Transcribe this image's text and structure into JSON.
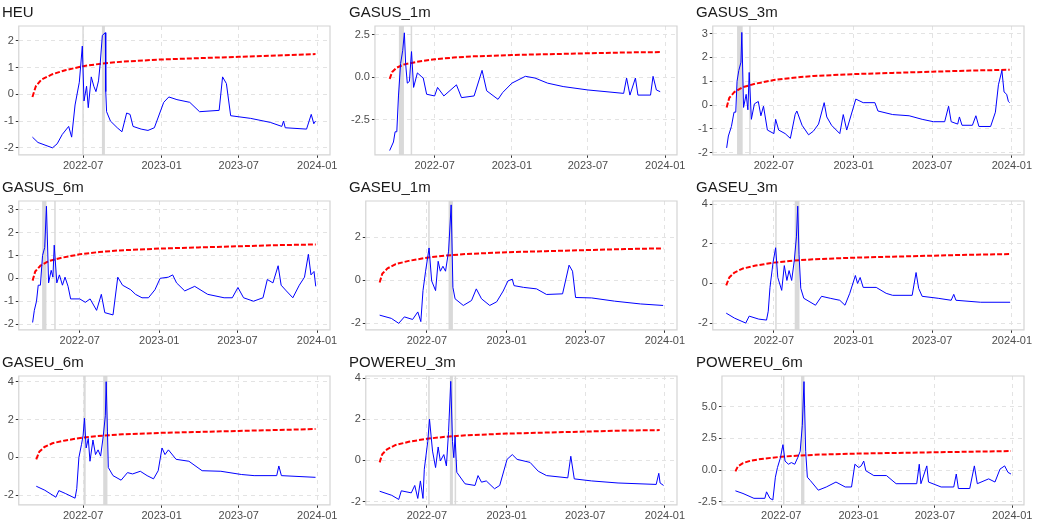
{
  "chart_data": [
    {
      "type": "line",
      "title": "HEU",
      "xlim": [
        "2022-01-31",
        "2024-01-31"
      ],
      "xticks": [
        "2022-07",
        "2023-01",
        "2023-07",
        "2024-01"
      ],
      "ylim": [
        -2.26,
        2.55
      ],
      "yticks": [
        -2,
        -1,
        0,
        1,
        2
      ],
      "grid": true,
      "marker": "none",
      "bands": [
        {
          "axis": "x",
          "from": "2022-06-29",
          "to": "2022-07-01",
          "color": "#d9d9d9"
        },
        {
          "axis": "x",
          "from": "2022-08-14",
          "to": "2022-08-21",
          "color": "#d9d9d9"
        }
      ],
      "series": [
        {
          "color": "#0000ff",
          "line_style": "solid",
          "x": [
            "2022-03-04",
            "2022-03-17",
            "2022-04-20",
            "2022-05-01",
            "2022-05-13",
            "2022-05-28",
            "2022-06-04",
            "2022-06-12",
            "2022-06-22",
            "2022-06-29",
            "2022-07-03",
            "2022-07-09",
            "2022-07-13",
            "2022-07-20",
            "2022-07-26",
            "2022-07-31",
            "2022-08-06",
            "2022-08-10",
            "2022-08-15",
            "2022-08-22",
            "2022-08-23",
            "2022-08-25",
            "2022-09-03",
            "2022-09-19",
            "2022-09-30",
            "2022-10-11",
            "2022-10-19",
            "2022-10-26",
            "2022-11-14",
            "2022-11-30",
            "2022-12-15",
            "2023-01-06",
            "2023-01-18",
            "2023-02-06",
            "2023-03-08",
            "2023-03-31",
            "2023-05-16",
            "2023-05-24",
            "2023-06-02",
            "2023-06-12",
            "2023-07-29",
            "2023-09-13",
            "2023-10-10",
            "2023-10-14",
            "2023-10-18",
            "2023-12-07",
            "2023-12-18",
            "2023-12-24",
            "2023-12-28"
          ],
          "values": [
            -1.6,
            -1.8,
            -2.0,
            -1.85,
            -1.5,
            -1.2,
            -1.6,
            -0.4,
            0.45,
            1.8,
            -0.25,
            0.3,
            -0.5,
            0.65,
            0.3,
            0.1,
            0.5,
            1.15,
            2.2,
            2.3,
            0.1,
            -0.65,
            -1.0,
            -1.25,
            -1.4,
            -0.7,
            -0.75,
            -1.2,
            -1.3,
            -1.35,
            -1.25,
            -0.3,
            -0.1,
            -0.2,
            -0.3,
            -0.65,
            -0.6,
            0.65,
            0.4,
            -0.8,
            -0.9,
            -1.05,
            -1.2,
            -1.0,
            -1.25,
            -1.3,
            -0.75,
            -1.1,
            -1.0
          ]
        },
        {
          "color": "#ff0000",
          "line_style": "dashed",
          "x": [
            "2022-03-04",
            "2022-03-12",
            "2022-03-25",
            "2022-04-20",
            "2022-05-20",
            "2022-07-01",
            "2022-08-15",
            "2022-10-01",
            "2023-01-01",
            "2023-04-01",
            "2023-07-01",
            "2023-10-01",
            "2023-12-28"
          ],
          "values": [
            -0.1,
            0.3,
            0.55,
            0.75,
            0.9,
            1.05,
            1.15,
            1.22,
            1.3,
            1.35,
            1.4,
            1.45,
            1.5
          ]
        }
      ]
    },
    {
      "type": "line",
      "title": "GASUS_1m",
      "xlim": [
        "2022-02-09",
        "2024-01-29"
      ],
      "xticks": [
        "2022-07",
        "2023-01",
        "2023-07",
        "2024-01"
      ],
      "ylim": [
        -4.55,
        3.0
      ],
      "yticks": [
        {
          "value": -2.5,
          "label": "-2.5"
        },
        {
          "value": 0,
          "label": "0.0"
        },
        {
          "value": 2.5,
          "label": "2.5"
        }
      ],
      "grid": true,
      "marker": "none",
      "bands": [
        {
          "axis": "x",
          "from": "2022-04-07",
          "to": "2022-04-19",
          "color": "#d9d9d9"
        },
        {
          "axis": "x",
          "from": "2022-05-05",
          "to": "2022-05-06",
          "color": "#d9d9d9"
        }
      ],
      "series": [
        {
          "color": "#0000ff",
          "line_style": "solid",
          "x": [
            "2022-03-16",
            "2022-03-25",
            "2022-03-29",
            "2022-04-02",
            "2022-04-06",
            "2022-04-11",
            "2022-04-16",
            "2022-04-20",
            "2022-04-23",
            "2022-04-27",
            "2022-05-02",
            "2022-05-07",
            "2022-05-12",
            "2022-05-21",
            "2022-05-30",
            "2022-06-04",
            "2022-06-12",
            "2022-07-01",
            "2022-07-08",
            "2022-07-23",
            "2022-08-22",
            "2022-09-03",
            "2022-10-03",
            "2022-10-22",
            "2022-11-02",
            "2022-11-29",
            "2022-12-10",
            "2023-01-01",
            "2023-02-02",
            "2023-02-25",
            "2023-03-27",
            "2023-05-03",
            "2023-07-01",
            "2023-08-13",
            "2023-09-24",
            "2023-10-01",
            "2023-10-09",
            "2023-10-22",
            "2023-10-28",
            "2023-11-27",
            "2023-12-03",
            "2023-12-11",
            "2023-12-20"
          ],
          "values": [
            -4.3,
            -3.8,
            -3.2,
            -3.2,
            -1.1,
            0.8,
            1.55,
            2.6,
            0.8,
            -0.35,
            -0.25,
            1.5,
            -0.6,
            0.25,
            0.05,
            -0.05,
            -1.0,
            -1.1,
            -0.6,
            -1.1,
            -0.45,
            -1.2,
            -1.1,
            0.4,
            -0.8,
            -1.3,
            -0.9,
            -0.35,
            0.05,
            -0.05,
            -0.35,
            -0.55,
            -0.75,
            -0.85,
            -0.95,
            -0.05,
            -1.05,
            -0.05,
            -1.05,
            -1.05,
            0.05,
            -0.75,
            -0.85
          ]
        },
        {
          "color": "#ff0000",
          "line_style": "dashed",
          "x": [
            "2022-03-16",
            "2022-03-22",
            "2022-04-01",
            "2022-04-20",
            "2022-05-20",
            "2022-07-01",
            "2022-08-15",
            "2022-10-01",
            "2023-01-01",
            "2023-04-01",
            "2023-07-01",
            "2023-10-01",
            "2023-12-20"
          ],
          "values": [
            -0.1,
            0.3,
            0.55,
            0.75,
            0.9,
            1.05,
            1.15,
            1.22,
            1.3,
            1.35,
            1.4,
            1.45,
            1.47
          ]
        }
      ]
    },
    {
      "type": "line",
      "title": "GASUS_3m",
      "xlim": [
        "2022-02-10",
        "2024-01-29"
      ],
      "xticks": [
        "2022-07",
        "2023-01",
        "2023-07",
        "2024-01"
      ],
      "ylim": [
        -2.09,
        3.32
      ],
      "yticks": [
        -2,
        -1,
        0,
        1,
        2,
        3
      ],
      "grid": true,
      "marker": "none",
      "bands": [
        {
          "axis": "x",
          "from": "2022-04-07",
          "to": "2022-04-20",
          "color": "#d9d9d9"
        },
        {
          "axis": "x",
          "from": "2022-05-05",
          "to": "2022-05-06",
          "color": "#d9d9d9"
        }
      ],
      "series": [
        {
          "color": "#0000ff",
          "line_style": "solid",
          "x": [
            "2022-03-14",
            "2022-03-18",
            "2022-03-25",
            "2022-03-31",
            "2022-04-04",
            "2022-04-07",
            "2022-04-11",
            "2022-04-16",
            "2022-04-18",
            "2022-04-22",
            "2022-04-28",
            "2022-05-02",
            "2022-05-05",
            "2022-05-10",
            "2022-05-17",
            "2022-05-26",
            "2022-06-01",
            "2022-06-07",
            "2022-06-16",
            "2022-07-01",
            "2022-07-05",
            "2022-07-12",
            "2022-07-27",
            "2022-08-08",
            "2022-08-19",
            "2022-08-23",
            "2022-09-04",
            "2022-09-19",
            "2022-09-30",
            "2022-10-12",
            "2022-10-25",
            "2022-10-31",
            "2022-11-11",
            "2022-11-30",
            "2022-12-08",
            "2022-12-16",
            "2023-01-06",
            "2023-01-23",
            "2023-02-19",
            "2023-02-26",
            "2023-04-01",
            "2023-05-09",
            "2023-06-08",
            "2023-07-04",
            "2023-07-30",
            "2023-08-08",
            "2023-08-14",
            "2023-08-29",
            "2023-09-02",
            "2023-09-08",
            "2023-10-02",
            "2023-10-10",
            "2023-10-17",
            "2023-11-13",
            "2023-11-24",
            "2023-12-01",
            "2023-12-09",
            "2023-12-14",
            "2023-12-20",
            "2023-12-24",
            "2023-12-27"
          ],
          "values": [
            -1.8,
            -1.3,
            -0.9,
            -0.3,
            -0.3,
            1.0,
            1.45,
            1.8,
            3.05,
            -0.1,
            0.45,
            -0.2,
            1.37,
            -0.6,
            0.05,
            0.15,
            -0.45,
            -0.05,
            -1.05,
            -1.2,
            -0.6,
            -1.05,
            -1.2,
            -1.4,
            -0.4,
            -0.25,
            -0.85,
            -1.25,
            -1.1,
            -0.8,
            0.1,
            -0.5,
            -0.85,
            -1.2,
            -0.4,
            -1.05,
            0.25,
            0.1,
            0.1,
            -0.25,
            -0.4,
            -0.45,
            -0.6,
            -0.7,
            -0.7,
            -0.05,
            -0.7,
            -0.8,
            -0.5,
            -0.85,
            -0.85,
            -0.45,
            -0.9,
            -0.9,
            -0.3,
            0.85,
            1.45,
            0.55,
            0.45,
            0.15,
            0.1
          ]
        },
        {
          "color": "#ff0000",
          "line_style": "dashed",
          "x": [
            "2022-03-14",
            "2022-03-20",
            "2022-04-01",
            "2022-04-20",
            "2022-05-20",
            "2022-07-01",
            "2022-08-15",
            "2022-10-01",
            "2023-01-01",
            "2023-04-01",
            "2023-07-01",
            "2023-10-01",
            "2023-12-27"
          ],
          "values": [
            -0.1,
            0.3,
            0.55,
            0.75,
            0.9,
            1.05,
            1.15,
            1.22,
            1.3,
            1.35,
            1.4,
            1.45,
            1.48
          ]
        }
      ]
    },
    {
      "type": "line",
      "title": "GASUS_6m",
      "xlim": [
        "2022-02-10",
        "2024-01-31"
      ],
      "xticks": [
        "2022-07",
        "2023-01",
        "2023-07",
        "2024-01"
      ],
      "ylim": [
        -2.25,
        3.38
      ],
      "yticks": [
        -2,
        -1,
        0,
        1,
        2,
        3
      ],
      "grid": true,
      "marker": "none",
      "bands": [
        {
          "axis": "x",
          "from": "2022-04-05",
          "to": "2022-04-15",
          "color": "#d9d9d9"
        },
        {
          "axis": "x",
          "from": "2022-05-03",
          "to": "2022-05-04",
          "color": "#d9d9d9"
        }
      ],
      "series": [
        {
          "color": "#0000ff",
          "line_style": "solid",
          "x": [
            "2022-03-14",
            "2022-03-18",
            "2022-03-23",
            "2022-03-27",
            "2022-04-01",
            "2022-04-06",
            "2022-04-11",
            "2022-04-15",
            "2022-04-20",
            "2022-04-26",
            "2022-04-30",
            "2022-05-03",
            "2022-05-09",
            "2022-05-15",
            "2022-05-22",
            "2022-05-28",
            "2022-06-04",
            "2022-06-10",
            "2022-07-01",
            "2022-07-14",
            "2022-07-25",
            "2022-08-09",
            "2022-08-20",
            "2022-08-28",
            "2022-09-16",
            "2022-09-27",
            "2022-10-08",
            "2022-10-27",
            "2022-11-07",
            "2022-11-22",
            "2022-12-07",
            "2022-12-22",
            "2023-01-03",
            "2023-01-22",
            "2023-02-01",
            "2023-02-10",
            "2023-03-01",
            "2023-03-24",
            "2023-04-23",
            "2023-05-31",
            "2023-06-19",
            "2023-07-02",
            "2023-07-15",
            "2023-08-07",
            "2023-08-29",
            "2023-09-08",
            "2023-09-21",
            "2023-10-03",
            "2023-10-10",
            "2023-10-22",
            "2023-11-06",
            "2023-11-21",
            "2023-12-03",
            "2023-12-12",
            "2023-12-18",
            "2023-12-25",
            "2023-12-29"
          ],
          "values": [
            -1.93,
            -1.4,
            -1.0,
            -0.3,
            -0.3,
            1.0,
            1.35,
            3.15,
            -0.2,
            0.35,
            0.05,
            1.45,
            -0.2,
            0.15,
            -0.3,
            0.05,
            -0.35,
            -0.9,
            -0.9,
            -1.05,
            -0.9,
            -1.4,
            -0.7,
            -1.5,
            -1.6,
            0.05,
            -0.3,
            -0.5,
            -0.7,
            -0.85,
            -0.85,
            -0.5,
            0.0,
            0.05,
            0.15,
            -0.2,
            -0.55,
            -0.35,
            -0.7,
            -0.85,
            -0.85,
            -0.4,
            -0.85,
            -1.0,
            -0.85,
            -0.05,
            -0.2,
            0.55,
            -0.3,
            -0.55,
            -0.85,
            -0.3,
            0.05,
            1.05,
            0.15,
            0.3,
            -0.35
          ]
        },
        {
          "color": "#ff0000",
          "line_style": "dashed",
          "x": [
            "2022-03-14",
            "2022-03-20",
            "2022-04-01",
            "2022-04-20",
            "2022-05-20",
            "2022-07-01",
            "2022-08-15",
            "2022-10-01",
            "2023-01-01",
            "2023-04-01",
            "2023-07-01",
            "2023-10-01",
            "2023-12-29"
          ],
          "values": [
            -0.1,
            0.3,
            0.55,
            0.75,
            0.9,
            1.05,
            1.15,
            1.22,
            1.3,
            1.35,
            1.4,
            1.45,
            1.48
          ]
        }
      ]
    },
    {
      "type": "line",
      "title": "GASEU_1m",
      "xlim": [
        "2022-02-10",
        "2024-01-29"
      ],
      "xticks": [
        "2022-07",
        "2023-01",
        "2023-07",
        "2024-01"
      ],
      "ylim": [
        -2.3,
        3.68
      ],
      "yticks": [
        -2,
        0,
        2
      ],
      "grid": true,
      "marker": "none",
      "bands": [
        {
          "axis": "x",
          "from": "2022-07-04",
          "to": "2022-07-05",
          "color": "#d9d9d9"
        },
        {
          "axis": "x",
          "from": "2022-08-20",
          "to": "2022-08-30",
          "color": "#d9d9d9"
        }
      ],
      "series": [
        {
          "color": "#0000ff",
          "line_style": "solid",
          "x": [
            "2022-03-14",
            "2022-04-10",
            "2022-04-27",
            "2022-05-10",
            "2022-05-29",
            "2022-06-10",
            "2022-06-17",
            "2022-06-22",
            "2022-06-28",
            "2022-07-06",
            "2022-07-12",
            "2022-07-21",
            "2022-07-27",
            "2022-08-01",
            "2022-08-07",
            "2022-08-13",
            "2022-08-20",
            "2022-08-26",
            "2022-08-30",
            "2022-09-04",
            "2022-09-23",
            "2022-10-12",
            "2022-10-23",
            "2022-11-04",
            "2022-11-23",
            "2022-12-09",
            "2022-12-24",
            "2023-01-04",
            "2023-01-14",
            "2023-01-18",
            "2023-02-09",
            "2023-03-11",
            "2023-04-03",
            "2023-05-10",
            "2023-05-25",
            "2023-06-02",
            "2023-06-09",
            "2023-07-16",
            "2023-09-07",
            "2023-11-06",
            "2023-12-28"
          ],
          "values": [
            -1.62,
            -1.77,
            -2.0,
            -1.7,
            -1.82,
            -1.47,
            -1.92,
            -0.48,
            0.42,
            1.5,
            -0.03,
            -0.48,
            0.88,
            0.42,
            0.65,
            0.42,
            1.35,
            3.5,
            -0.33,
            -0.86,
            -1.17,
            -0.94,
            -0.4,
            -0.86,
            -1.17,
            -1.0,
            -0.5,
            -0.03,
            0.05,
            -0.25,
            -0.33,
            -0.4,
            -0.66,
            -0.63,
            0.7,
            0.42,
            -0.8,
            -0.82,
            -0.97,
            -1.1,
            -1.17
          ]
        },
        {
          "color": "#ff0000",
          "line_style": "dashed",
          "x": [
            "2022-03-14",
            "2022-03-20",
            "2022-04-01",
            "2022-04-20",
            "2022-05-20",
            "2022-07-01",
            "2022-08-15",
            "2022-10-01",
            "2023-01-01",
            "2023-04-01",
            "2023-07-01",
            "2023-10-01",
            "2023-12-28"
          ],
          "values": [
            -0.1,
            0.3,
            0.55,
            0.75,
            0.9,
            1.05,
            1.15,
            1.22,
            1.3,
            1.35,
            1.4,
            1.45,
            1.48
          ]
        }
      ]
    },
    {
      "type": "line",
      "title": "GASEU_3m",
      "xlim": [
        "2022-02-10",
        "2024-01-29"
      ],
      "xticks": [
        "2022-07",
        "2023-01",
        "2023-07",
        "2024-01"
      ],
      "ylim": [
        -2.34,
        4.16
      ],
      "yticks": [
        -2,
        0,
        2,
        4
      ],
      "grid": true,
      "marker": "none",
      "bands": [
        {
          "axis": "x",
          "from": "2022-07-04",
          "to": "2022-07-06",
          "color": "#d9d9d9"
        },
        {
          "axis": "x",
          "from": "2022-08-18",
          "to": "2022-08-29",
          "color": "#d9d9d9"
        }
      ],
      "series": [
        {
          "color": "#0000ff",
          "line_style": "solid",
          "x": [
            "2022-03-13",
            "2022-04-01",
            "2022-04-27",
            "2022-05-05",
            "2022-05-27",
            "2022-06-14",
            "2022-06-18",
            "2022-06-22",
            "2022-06-29",
            "2022-07-05",
            "2022-07-10",
            "2022-07-19",
            "2022-07-25",
            "2022-07-31",
            "2022-08-05",
            "2022-08-11",
            "2022-08-17",
            "2022-08-22",
            "2022-08-25",
            "2022-08-28",
            "2022-09-01",
            "2022-09-08",
            "2022-10-05",
            "2022-10-19",
            "2022-11-08",
            "2022-11-30",
            "2022-12-12",
            "2022-12-23",
            "2023-01-05",
            "2023-01-10",
            "2023-01-16",
            "2023-01-23",
            "2023-02-22",
            "2023-03-17",
            "2023-04-01",
            "2023-05-16",
            "2023-05-25",
            "2023-05-31",
            "2023-06-08",
            "2023-07-15",
            "2023-08-14",
            "2023-08-20",
            "2023-08-25",
            "2023-10-21",
            "2023-12-28"
          ],
          "values": [
            -1.5,
            -1.75,
            -2.0,
            -1.65,
            -1.8,
            -1.85,
            -1.4,
            -0.2,
            1.05,
            1.8,
            0.3,
            -0.35,
            0.9,
            0.15,
            0.65,
            0.15,
            1.15,
            2.35,
            3.9,
            1.45,
            -0.25,
            -0.75,
            -1.1,
            -0.65,
            -0.75,
            -0.85,
            -1.1,
            -0.5,
            0.4,
            0.0,
            0.3,
            -0.2,
            -0.2,
            -0.5,
            -0.6,
            -0.6,
            0.55,
            -0.25,
            -0.65,
            -0.75,
            -0.85,
            -0.55,
            -0.85,
            -0.95,
            -0.95
          ]
        },
        {
          "color": "#ff0000",
          "line_style": "dashed",
          "x": [
            "2022-03-13",
            "2022-03-20",
            "2022-04-01",
            "2022-04-20",
            "2022-05-20",
            "2022-07-01",
            "2022-08-15",
            "2022-10-01",
            "2023-01-01",
            "2023-04-01",
            "2023-07-01",
            "2023-10-01",
            "2023-12-28"
          ],
          "values": [
            -0.1,
            0.3,
            0.55,
            0.75,
            0.9,
            1.05,
            1.15,
            1.22,
            1.3,
            1.35,
            1.4,
            1.45,
            1.48
          ]
        }
      ]
    },
    {
      "type": "line",
      "title": "GASEU_6m",
      "xlim": [
        "2022-01-31",
        "2024-01-31"
      ],
      "xticks": [
        "2022-07",
        "2023-01",
        "2023-07",
        "2024-01"
      ],
      "ylim": [
        -2.5,
        4.3
      ],
      "yticks": [
        -2,
        0,
        2,
        4
      ],
      "grid": true,
      "marker": "none",
      "bands": [
        {
          "axis": "x",
          "from": "2022-07-02",
          "to": "2022-07-07",
          "color": "#d9d9d9"
        },
        {
          "axis": "x",
          "from": "2022-08-17",
          "to": "2022-08-27",
          "color": "#d9d9d9"
        }
      ],
      "series": [
        {
          "color": "#0000ff",
          "line_style": "solid",
          "x": [
            "2022-03-13",
            "2022-04-02",
            "2022-04-28",
            "2022-05-05",
            "2022-05-20",
            "2022-06-12",
            "2022-06-16",
            "2022-06-21",
            "2022-06-27",
            "2022-07-01",
            "2022-07-04",
            "2022-07-08",
            "2022-07-13",
            "2022-07-17",
            "2022-07-24",
            "2022-07-30",
            "2022-08-05",
            "2022-08-11",
            "2022-08-17",
            "2022-08-22",
            "2022-08-24",
            "2022-08-27",
            "2022-08-29",
            "2022-09-09",
            "2022-09-28",
            "2022-10-13",
            "2022-10-25",
            "2022-11-12",
            "2022-11-28",
            "2022-12-13",
            "2022-12-24",
            "2023-01-02",
            "2023-01-09",
            "2023-01-17",
            "2023-02-04",
            "2023-03-06",
            "2023-04-06",
            "2023-05-20",
            "2023-07-07",
            "2023-08-06",
            "2023-09-28",
            "2023-10-03",
            "2023-10-09",
            "2023-12-28"
          ],
          "values": [
            -1.52,
            -1.73,
            -2.1,
            -1.75,
            -1.9,
            -2.15,
            -1.65,
            0.0,
            0.67,
            1.18,
            2.07,
            0.5,
            1.0,
            -0.2,
            0.92,
            0.15,
            0.4,
            0.07,
            1.1,
            2.2,
            4.0,
            1.35,
            -0.53,
            -0.96,
            -1.2,
            -0.8,
            -0.87,
            -0.73,
            -0.96,
            -1.13,
            -0.7,
            0.5,
            0.15,
            0.4,
            -0.1,
            -0.2,
            -0.7,
            -0.73,
            -0.9,
            -0.96,
            -0.96,
            -0.45,
            -0.96,
            -1.05
          ]
        },
        {
          "color": "#ff0000",
          "line_style": "dashed",
          "x": [
            "2022-03-13",
            "2022-03-20",
            "2022-04-01",
            "2022-04-20",
            "2022-05-20",
            "2022-07-01",
            "2022-08-15",
            "2022-10-01",
            "2023-01-01",
            "2023-04-01",
            "2023-07-01",
            "2023-10-01",
            "2023-12-28"
          ],
          "values": [
            -0.1,
            0.3,
            0.55,
            0.75,
            0.9,
            1.05,
            1.15,
            1.22,
            1.3,
            1.35,
            1.4,
            1.45,
            1.5
          ]
        }
      ]
    },
    {
      "type": "line",
      "title": "POWEREU_3m",
      "xlim": [
        "2022-02-10",
        "2024-01-29"
      ],
      "xticks": [
        "2022-07",
        "2023-01",
        "2023-07",
        "2024-01"
      ],
      "ylim": [
        -2.16,
        4.1
      ],
      "yticks": [
        -2,
        0,
        2,
        4
      ],
      "grid": true,
      "marker": "none",
      "bands": [
        {
          "axis": "x",
          "from": "2022-07-04",
          "to": "2022-07-05",
          "color": "#d9d9d9"
        },
        {
          "axis": "x",
          "from": "2022-08-23",
          "to": "2022-08-30",
          "color": "#d9d9d9"
        },
        {
          "axis": "x",
          "from": "2022-09-03",
          "to": "2022-09-04",
          "color": "#d9d9d9"
        }
      ],
      "series": [
        {
          "color": "#0000ff",
          "line_style": "solid",
          "x": [
            "2022-03-14",
            "2022-04-11",
            "2022-04-27",
            "2022-05-03",
            "2022-05-26",
            "2022-06-03",
            "2022-06-10",
            "2022-06-16",
            "2022-06-22",
            "2022-06-25",
            "2022-07-03",
            "2022-07-07",
            "2022-07-14",
            "2022-07-21",
            "2022-07-27",
            "2022-08-01",
            "2022-08-09",
            "2022-08-15",
            "2022-08-20",
            "2022-08-25",
            "2022-08-29",
            "2022-09-01",
            "2022-09-04",
            "2022-09-08",
            "2022-09-27",
            "2022-10-20",
            "2022-10-27",
            "2022-11-04",
            "2022-11-15",
            "2022-12-04",
            "2022-12-16",
            "2023-01-02",
            "2023-01-14",
            "2023-01-25",
            "2023-02-24",
            "2023-03-15",
            "2023-04-03",
            "2023-05-22",
            "2023-05-29",
            "2023-06-06",
            "2023-07-16",
            "2023-09-15",
            "2023-12-12",
            "2023-12-18",
            "2023-12-21",
            "2023-12-29"
          ],
          "values": [
            -1.5,
            -1.7,
            -1.9,
            -1.48,
            -1.58,
            -1.22,
            -1.85,
            -1.0,
            -1.85,
            -0.43,
            0.92,
            2.0,
            0.45,
            -0.35,
            0.65,
            -0.03,
            0.28,
            -0.27,
            1.4,
            3.84,
            0.92,
            0.13,
            1.15,
            -0.58,
            -1.14,
            -1.22,
            -0.74,
            -1.06,
            -1.0,
            -1.38,
            -1.22,
            0.05,
            0.28,
            0.05,
            -0.1,
            -0.53,
            -0.74,
            -0.85,
            0.2,
            -0.9,
            -1.0,
            -1.1,
            -1.17,
            -0.63,
            -1.1,
            -1.22
          ]
        },
        {
          "color": "#ff0000",
          "line_style": "dashed",
          "x": [
            "2022-03-14",
            "2022-03-20",
            "2022-04-01",
            "2022-04-20",
            "2022-05-20",
            "2022-07-01",
            "2022-08-15",
            "2022-10-01",
            "2023-01-01",
            "2023-04-01",
            "2023-07-01",
            "2023-10-01",
            "2023-12-20"
          ],
          "values": [
            -0.1,
            0.3,
            0.55,
            0.75,
            0.9,
            1.05,
            1.15,
            1.22,
            1.3,
            1.35,
            1.4,
            1.45,
            1.47
          ]
        }
      ]
    },
    {
      "type": "line",
      "title": "POWEREU_6m",
      "xlim": [
        "2022-02-10",
        "2024-01-29"
      ],
      "xticks": [
        "2022-07",
        "2023-01",
        "2023-07",
        "2024-01"
      ],
      "ylim": [
        -2.73,
        7.4
      ],
      "yticks": [
        {
          "value": -2.5,
          "label": "-2.5"
        },
        {
          "value": 0,
          "label": "0.0"
        },
        {
          "value": 2.5,
          "label": "2.5"
        },
        {
          "value": 5,
          "label": "5.0"
        }
      ],
      "grid": true,
      "marker": "none",
      "bands": [
        {
          "axis": "x",
          "from": "2022-07-05",
          "to": "2022-07-07",
          "color": "#d9d9d9"
        },
        {
          "axis": "x",
          "from": "2022-08-17",
          "to": "2022-08-25",
          "color": "#d9d9d9"
        }
      ],
      "series": [
        {
          "color": "#0000ff",
          "line_style": "solid",
          "x": [
            "2022-03-14",
            "2022-04-01",
            "2022-04-27",
            "2022-05-23",
            "2022-05-27",
            "2022-06-04",
            "2022-06-11",
            "2022-06-17",
            "2022-06-22",
            "2022-06-29",
            "2022-07-05",
            "2022-07-10",
            "2022-07-18",
            "2022-07-25",
            "2022-08-02",
            "2022-08-09",
            "2022-08-15",
            "2022-08-20",
            "2022-08-24",
            "2022-08-28",
            "2022-09-01",
            "2022-09-08",
            "2022-09-27",
            "2022-10-16",
            "2022-11-08",
            "2022-11-30",
            "2022-12-15",
            "2022-12-23",
            "2023-01-01",
            "2023-01-07",
            "2023-01-13",
            "2023-01-18",
            "2023-02-06",
            "2023-03-08",
            "2023-03-31",
            "2023-05-19",
            "2023-05-25",
            "2023-05-29",
            "2023-06-12",
            "2023-06-16",
            "2023-07-16",
            "2023-08-15",
            "2023-08-21",
            "2023-08-26",
            "2023-09-22",
            "2023-10-03",
            "2023-10-10",
            "2023-11-06",
            "2023-11-21",
            "2023-12-03",
            "2023-12-14",
            "2023-12-22",
            "2023-12-29"
          ],
          "values": [
            -1.63,
            -1.84,
            -2.22,
            -2.22,
            -1.71,
            -2.22,
            -2.35,
            -0.56,
            0.2,
            0.97,
            2.0,
            0.71,
            0.46,
            0.59,
            0.46,
            0.97,
            1.48,
            3.52,
            6.96,
            1.48,
            -0.56,
            -0.82,
            -1.58,
            -1.33,
            -0.94,
            -1.33,
            -1.33,
            0.46,
            0.2,
            0.33,
            0.71,
            -0.05,
            -0.43,
            -0.43,
            -1.07,
            -1.07,
            0.46,
            -1.07,
            0.33,
            -0.94,
            -1.33,
            -1.33,
            -0.31,
            -1.45,
            -1.45,
            0.33,
            -1.07,
            -0.69,
            -0.94,
            0.08,
            0.33,
            -0.18,
            -0.31
          ]
        },
        {
          "color": "#ff0000",
          "line_style": "dashed",
          "x": [
            "2022-03-14",
            "2022-03-20",
            "2022-04-01",
            "2022-04-20",
            "2022-05-20",
            "2022-07-01",
            "2022-08-15",
            "2022-10-01",
            "2023-01-01",
            "2023-04-01",
            "2023-07-01",
            "2023-10-01",
            "2023-12-29"
          ],
          "values": [
            -0.1,
            0.3,
            0.55,
            0.75,
            0.9,
            1.05,
            1.15,
            1.22,
            1.3,
            1.35,
            1.4,
            1.45,
            1.5
          ]
        }
      ]
    }
  ]
}
